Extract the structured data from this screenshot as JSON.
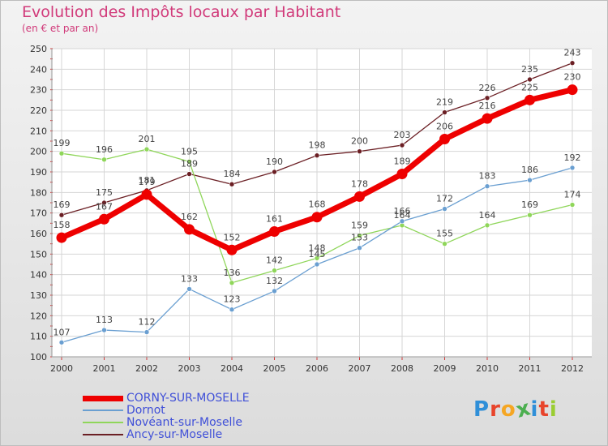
{
  "header": {
    "title": "Evolution des Impôts locaux par Habitant",
    "subtitle": "(en € et par an)"
  },
  "chart_data": {
    "type": "line",
    "title": "Evolution des Impôts locaux par Habitant",
    "subtitle": "(en € et par an)",
    "x": [
      "2000",
      "2001",
      "2002",
      "2003",
      "2004",
      "2005",
      "2006",
      "2007",
      "2008",
      "2009",
      "2010",
      "2011",
      "2012"
    ],
    "ylim": [
      100,
      250
    ],
    "yticks": [
      100,
      110,
      120,
      130,
      140,
      150,
      160,
      170,
      180,
      190,
      200,
      210,
      220,
      230,
      240,
      250
    ],
    "grid": true,
    "legend_position": "bottom-left",
    "series": [
      {
        "name": "Ancy-sur-Moselle",
        "color": "#6b1f24",
        "values": [
          169,
          175,
          181,
          189,
          184,
          190,
          198,
          200,
          203,
          219,
          226,
          235,
          243
        ]
      },
      {
        "name": "Noveant-sur-Moselle",
        "color": "#8fd65a",
        "values": [
          199,
          196,
          201,
          195,
          136,
          142,
          148,
          159,
          164,
          155,
          164,
          169,
          174
        ]
      },
      {
        "name": "Dornot",
        "color": "#6a9fd1",
        "values": [
          107,
          113,
          112,
          133,
          123,
          132,
          145,
          153,
          166,
          172,
          183,
          186,
          192
        ]
      },
      {
        "name": "CORNY-SUR-MOSELLE",
        "color": "#ee0000",
        "values": [
          158,
          167,
          179,
          162,
          152,
          161,
          168,
          178,
          189,
          206,
          216,
          225,
          230
        ]
      }
    ]
  },
  "legend": [
    {
      "label": "CORNY-SUR-MOSELLE",
      "color": "#ee0000"
    },
    {
      "label": "Dornot",
      "color": "#6a9fd1"
    },
    {
      "label": "Novéant-sur-Moselle",
      "color": "#8fd65a"
    },
    {
      "label": "Ancy-sur-Moselle",
      "color": "#6b1f24"
    }
  ],
  "logo": {
    "letters": [
      "P",
      "r",
      "o",
      "x",
      "i",
      "t",
      "i"
    ],
    "colors": [
      "#2f8fd8",
      "#e8442b",
      "#f5a623",
      "#4caf50",
      "#2f8fd8",
      "#e8442b",
      "#9acd32"
    ]
  }
}
